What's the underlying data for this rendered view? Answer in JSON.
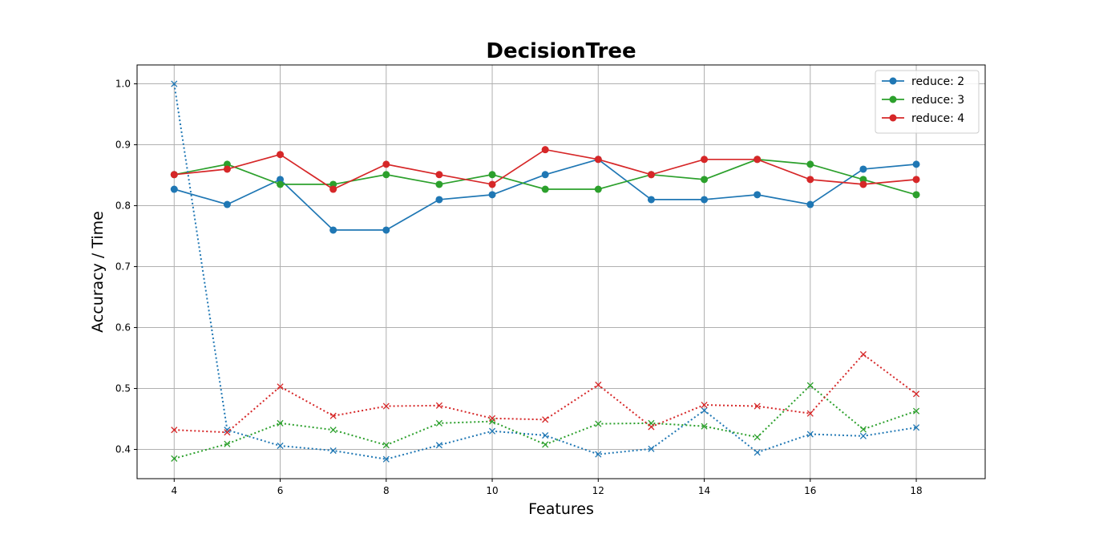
{
  "chart_data": {
    "type": "line",
    "title": "DecisionTree",
    "xlabel": "Features",
    "ylabel": "Accuracy / Time",
    "xlim": [
      3.3,
      19.3
    ],
    "ylim": [
      0.352,
      1.031
    ],
    "xticks": [
      4,
      6,
      8,
      10,
      12,
      14,
      16,
      18
    ],
    "yticks": [
      0.4,
      0.5,
      0.6,
      0.7,
      0.8,
      0.9,
      1.0
    ],
    "grid": true,
    "legend_position": "top-right",
    "x": [
      4,
      5,
      6,
      7,
      8,
      9,
      10,
      11,
      12,
      13,
      14,
      15,
      16,
      17,
      18
    ],
    "series": [
      {
        "name": "reduce: 2",
        "color": "#1f77b4",
        "style": "solid",
        "marker": "circle",
        "in_legend": true,
        "values": [
          0.827,
          0.802,
          0.843,
          0.76,
          0.76,
          0.81,
          0.818,
          0.851,
          0.876,
          0.81,
          0.81,
          0.818,
          0.802,
          0.86,
          0.868
        ]
      },
      {
        "name": "reduce: 3",
        "color": "#2ca02c",
        "style": "solid",
        "marker": "circle",
        "in_legend": true,
        "values": [
          0.851,
          0.868,
          0.835,
          0.835,
          0.851,
          0.835,
          0.851,
          0.827,
          0.827,
          0.851,
          0.843,
          0.876,
          0.868,
          0.843,
          0.818
        ]
      },
      {
        "name": "reduce: 4",
        "color": "#d62728",
        "style": "solid",
        "marker": "circle",
        "in_legend": true,
        "values": [
          0.851,
          0.86,
          0.884,
          0.827,
          0.868,
          0.851,
          0.835,
          0.892,
          0.876,
          0.851,
          0.876,
          0.876,
          0.843,
          0.835,
          0.843
        ]
      },
      {
        "color": "#1f77b4",
        "style": "dotted",
        "marker": "x",
        "in_legend": false,
        "values": [
          1.0,
          0.432,
          0.406,
          0.398,
          0.384,
          0.407,
          0.43,
          0.423,
          0.392,
          0.401,
          0.464,
          0.395,
          0.425,
          0.422,
          0.436
        ]
      },
      {
        "color": "#2ca02c",
        "style": "dotted",
        "marker": "x",
        "in_legend": false,
        "values": [
          0.385,
          0.409,
          0.443,
          0.432,
          0.407,
          0.443,
          0.446,
          0.408,
          0.442,
          0.443,
          0.438,
          0.42,
          0.505,
          0.433,
          0.463
        ]
      },
      {
        "color": "#d62728",
        "style": "dotted",
        "marker": "x",
        "in_legend": false,
        "values": [
          0.432,
          0.428,
          0.503,
          0.455,
          0.471,
          0.472,
          0.451,
          0.449,
          0.506,
          0.437,
          0.473,
          0.471,
          0.459,
          0.556,
          0.491
        ]
      }
    ]
  }
}
